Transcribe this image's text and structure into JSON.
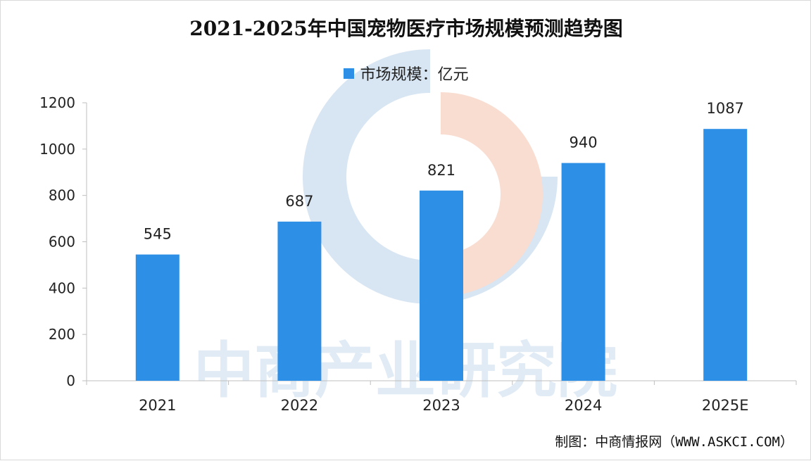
{
  "title": "2021-2025年中国宠物医疗市场规模预测趋势图",
  "legend": {
    "label": "市场规模：亿元"
  },
  "watermark": "中商产业研究院",
  "credit": "制图：中商情报网（WWW.ASKCI.COM）",
  "colors": {
    "bar": "#2e8fe6",
    "axis": "#bfbfbf",
    "text": "#222222"
  },
  "chart_data": {
    "type": "bar",
    "title": "2021-2025年中国宠物医疗市场规模预测趋势图",
    "categories": [
      "2021",
      "2022",
      "2023",
      "2024",
      "2025E"
    ],
    "series": [
      {
        "name": "市场规模：亿元",
        "values": [
          545,
          687,
          821,
          940,
          1087
        ]
      }
    ],
    "ylim": [
      0,
      1200
    ],
    "yticks": [
      0,
      200,
      400,
      600,
      800,
      1000,
      1200
    ],
    "xlabel": "",
    "ylabel": "",
    "grid": false,
    "legend_position": "top-center",
    "data_labels": true
  }
}
